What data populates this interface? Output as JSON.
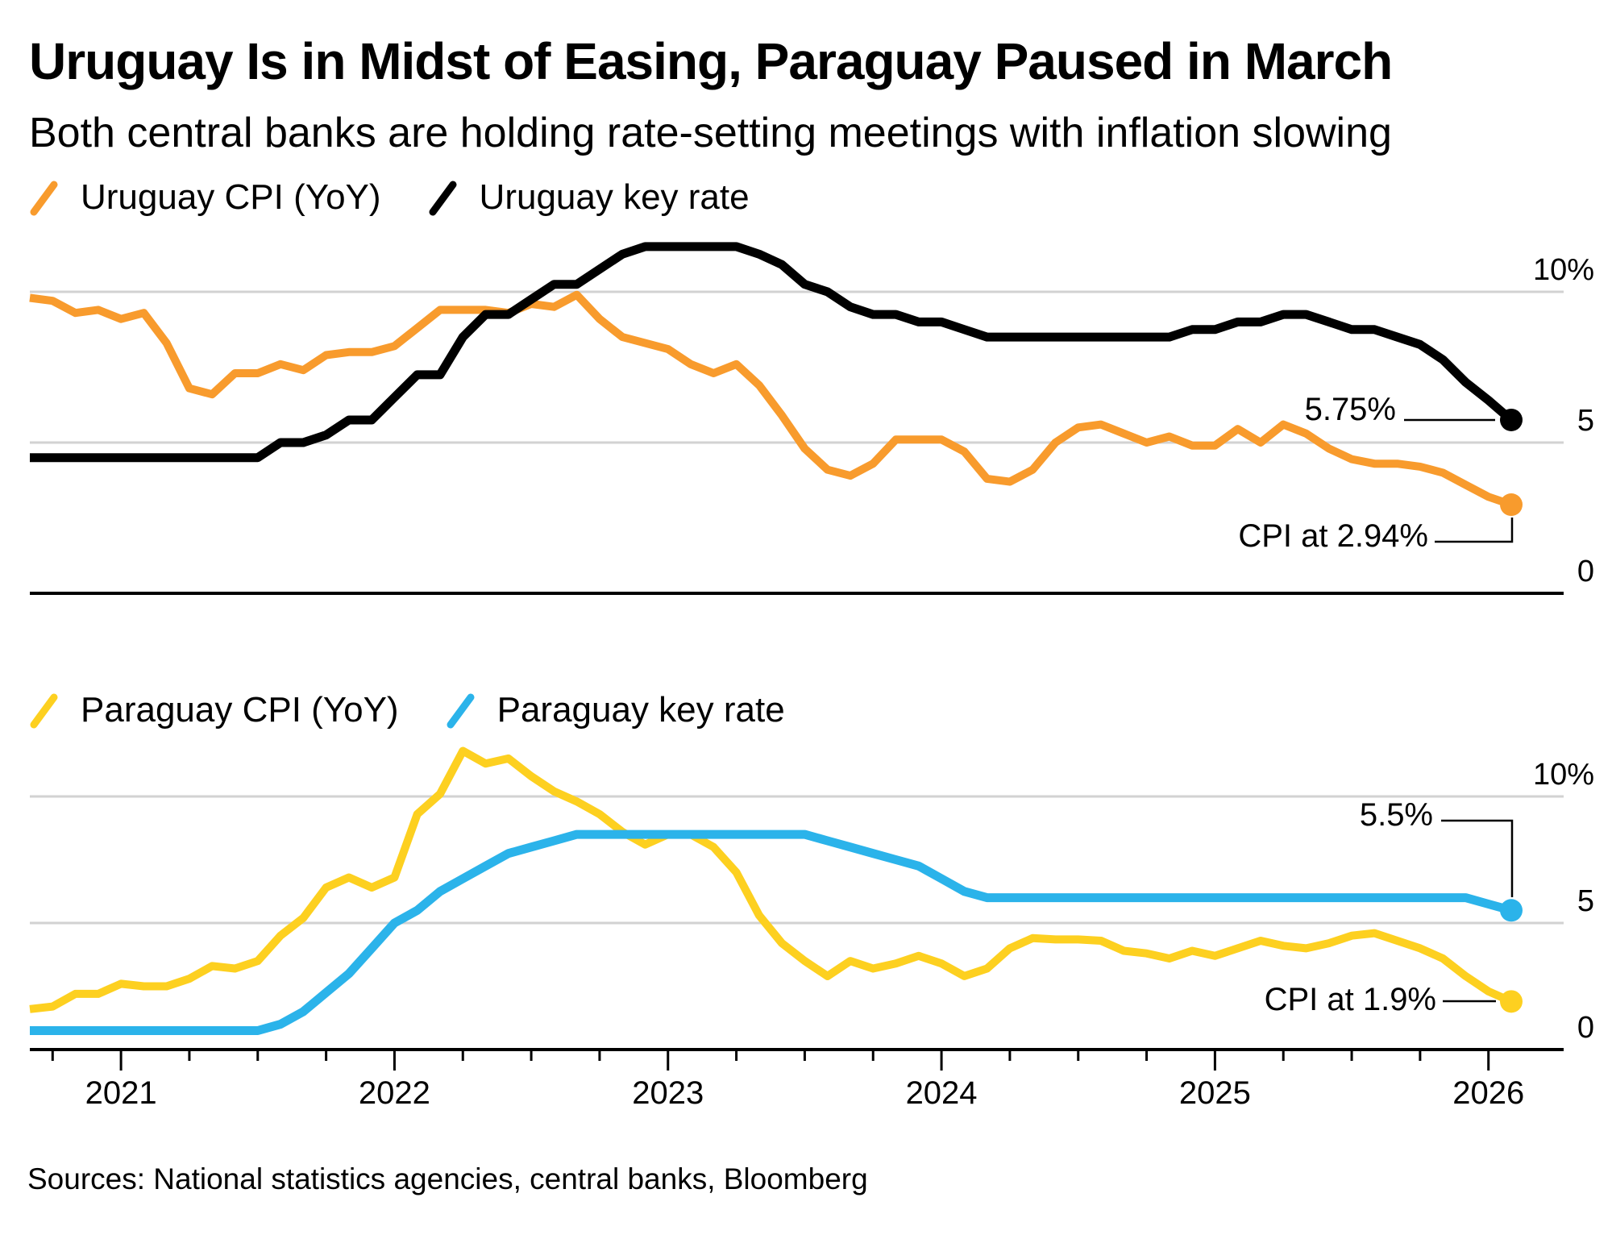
{
  "header": {
    "title": "Uruguay Is in Midst of Easing, Paraguay Paused in March",
    "subtitle": "Both central banks are holding rate-setting meetings with inflation slowing"
  },
  "footer": {
    "sources_label": "Sources: National statistics agencies, central banks, Bloomberg"
  },
  "colors": {
    "uruguay_cpi": "#F89B2D",
    "uruguay_key_rate": "#000000",
    "paraguay_cpi": "#FDD020",
    "paraguay_key_rate": "#2BB3EA",
    "gridline": "#D2D2D2",
    "axis": "#000000",
    "text": "#000000",
    "background": "#FFFFFF"
  },
  "x_axis": {
    "tick_years": [
      "2021",
      "2022",
      "2023",
      "2024",
      "2025",
      "2026"
    ],
    "minor_tick_interval": "quarterly"
  },
  "chart_data": [
    {
      "type": "line",
      "name": "uruguay-panel",
      "x_start": "2020-09",
      "x_end": "2026-02",
      "x_interval": "monthly",
      "ylim": [
        0,
        12.2
      ],
      "yticks": [
        {
          "value": 10,
          "label": "10%"
        },
        {
          "value": 5,
          "label": "5"
        },
        {
          "value": 0,
          "label": "0"
        }
      ],
      "grid": "horizontal",
      "legend_position": "top-left",
      "series": [
        {
          "name": "Uruguay CPI (YoY)",
          "color": "#F89B2D",
          "values": [
            9.8,
            9.7,
            9.3,
            9.4,
            9.1,
            9.3,
            8.3,
            6.8,
            6.6,
            7.3,
            7.3,
            7.6,
            7.4,
            7.9,
            8.0,
            8.0,
            8.2,
            8.8,
            9.4,
            9.4,
            9.4,
            9.3,
            9.6,
            9.5,
            9.9,
            9.1,
            8.5,
            8.3,
            8.1,
            7.6,
            7.3,
            7.6,
            6.9,
            5.9,
            4.8,
            4.1,
            3.9,
            4.3,
            5.1,
            5.1,
            5.1,
            4.7,
            3.8,
            3.7,
            4.1,
            5.0,
            5.5,
            5.6,
            5.3,
            5.0,
            5.2,
            4.9,
            4.9,
            5.45,
            5.0,
            5.6,
            5.3,
            4.8,
            4.45,
            4.3,
            4.3,
            4.2,
            4.0,
            3.6,
            3.2,
            2.94
          ]
        },
        {
          "name": "Uruguay key rate",
          "color": "#000000",
          "values": [
            4.5,
            4.5,
            4.5,
            4.5,
            4.5,
            4.5,
            4.5,
            4.5,
            4.5,
            4.5,
            4.5,
            5.0,
            5.0,
            5.25,
            5.75,
            5.75,
            6.5,
            7.25,
            7.25,
            8.5,
            9.25,
            9.25,
            9.75,
            10.25,
            10.25,
            10.75,
            11.25,
            11.5,
            11.5,
            11.5,
            11.5,
            11.5,
            11.25,
            10.9,
            10.25,
            10.0,
            9.5,
            9.25,
            9.25,
            9.0,
            9.0,
            8.75,
            8.5,
            8.5,
            8.5,
            8.5,
            8.5,
            8.5,
            8.5,
            8.5,
            8.5,
            8.75,
            8.75,
            9.0,
            9.0,
            9.25,
            9.25,
            9.0,
            8.75,
            8.75,
            8.5,
            8.25,
            7.75,
            7.0,
            6.4,
            5.75
          ]
        }
      ],
      "annotations": [
        {
          "text": "5.75%",
          "series": "Uruguay key rate",
          "point": "last",
          "value": 5.75
        },
        {
          "text": "CPI at 2.94%",
          "series": "Uruguay CPI (YoY)",
          "point": "last",
          "value": 2.94
        }
      ]
    },
    {
      "type": "line",
      "name": "paraguay-panel",
      "x_start": "2020-09",
      "x_end": "2026-02",
      "x_interval": "monthly",
      "ylim": [
        0,
        12.2
      ],
      "yticks": [
        {
          "value": 10,
          "label": "10%"
        },
        {
          "value": 5,
          "label": "5"
        },
        {
          "value": 0,
          "label": "0"
        }
      ],
      "grid": "horizontal",
      "legend_position": "top-left",
      "series": [
        {
          "name": "Paraguay CPI (YoY)",
          "color": "#FDD020",
          "values": [
            1.6,
            1.7,
            2.2,
            2.2,
            2.6,
            2.5,
            2.5,
            2.8,
            3.3,
            3.2,
            3.5,
            4.5,
            5.2,
            6.4,
            6.8,
            6.4,
            6.8,
            9.3,
            10.1,
            11.8,
            11.3,
            11.5,
            10.8,
            10.2,
            9.8,
            9.3,
            8.6,
            8.1,
            8.5,
            8.5,
            8.0,
            7.0,
            5.3,
            4.2,
            3.5,
            2.9,
            3.5,
            3.2,
            3.4,
            3.7,
            3.4,
            2.9,
            3.2,
            4.0,
            4.4,
            4.35,
            4.35,
            4.3,
            3.9,
            3.8,
            3.6,
            3.9,
            3.7,
            4.0,
            4.3,
            4.1,
            4.0,
            4.2,
            4.5,
            4.6,
            4.3,
            4.0,
            3.6,
            2.9,
            2.3,
            1.9
          ]
        },
        {
          "name": "Paraguay key rate",
          "color": "#2BB3EA",
          "values": [
            0.75,
            0.75,
            0.75,
            0.75,
            0.75,
            0.75,
            0.75,
            0.75,
            0.75,
            0.75,
            0.75,
            1.0,
            1.5,
            2.25,
            3.0,
            4.0,
            5.0,
            5.5,
            6.25,
            6.75,
            7.25,
            7.75,
            8.0,
            8.25,
            8.5,
            8.5,
            8.5,
            8.5,
            8.5,
            8.5,
            8.5,
            8.5,
            8.5,
            8.5,
            8.5,
            8.25,
            8.0,
            7.75,
            7.5,
            7.25,
            6.75,
            6.25,
            6.0,
            6.0,
            6.0,
            6.0,
            6.0,
            6.0,
            6.0,
            6.0,
            6.0,
            6.0,
            6.0,
            6.0,
            6.0,
            6.0,
            6.0,
            6.0,
            6.0,
            6.0,
            6.0,
            6.0,
            6.0,
            6.0,
            5.75,
            5.5
          ]
        }
      ],
      "annotations": [
        {
          "text": "5.5%",
          "series": "Paraguay key rate",
          "point": "last",
          "value": 5.5
        },
        {
          "text": "CPI at 1.9%",
          "series": "Paraguay CPI (YoY)",
          "point": "last",
          "value": 1.9
        }
      ]
    }
  ]
}
